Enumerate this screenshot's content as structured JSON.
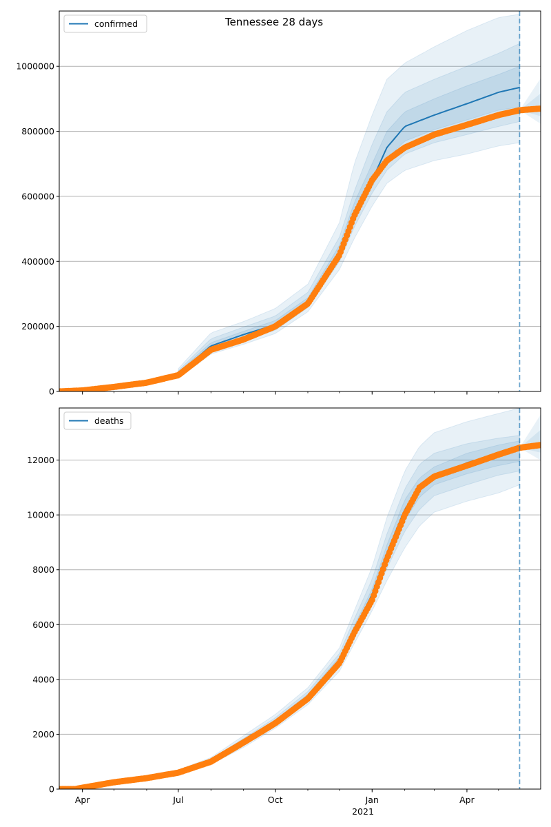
{
  "figure": {
    "title": "Tennessee 28 days"
  },
  "colors": {
    "model": "#1f77b4",
    "observed": "#ff7f0e",
    "band": "#1f77b4",
    "grid": "#b0b0b0",
    "forecast_line": "#1f77b4"
  },
  "x_axis": {
    "tick_labels": [
      "Apr",
      "Jul",
      "Oct",
      "Jan",
      "Apr"
    ],
    "year_label": "2021"
  },
  "chart_data": [
    {
      "type": "line",
      "title": "Tennessee 28 days",
      "legend": {
        "label": "confirmed",
        "position": "top-left"
      },
      "grid": "horizontal",
      "xlim": [
        "2020-03-10",
        "2021-06-10"
      ],
      "ylim": [
        0,
        1170000
      ],
      "yticks": [
        0,
        200000,
        400000,
        600000,
        800000,
        1000000
      ],
      "ytick_labels": [
        "0",
        "200000",
        "400000",
        "600000",
        "800000",
        "1000000"
      ],
      "xticks": [
        "2020-04-01",
        "2020-07-01",
        "2020-10-01",
        "2021-01-01",
        "2021-04-01"
      ],
      "forecast_start": "2021-05-21",
      "observed": {
        "dates": [
          "2020-03-10",
          "2020-04-01",
          "2020-05-01",
          "2020-06-01",
          "2020-07-01",
          "2020-07-15",
          "2020-08-01",
          "2020-09-01",
          "2020-10-01",
          "2020-11-01",
          "2020-11-15",
          "2020-12-01",
          "2020-12-15",
          "2021-01-01",
          "2021-01-15",
          "2021-02-01",
          "2021-03-01",
          "2021-04-01",
          "2021-05-01",
          "2021-05-21",
          "2021-06-10"
        ],
        "values": [
          0,
          3000,
          14000,
          27000,
          50000,
          85000,
          128000,
          160000,
          200000,
          270000,
          340000,
          420000,
          540000,
          650000,
          710000,
          750000,
          790000,
          820000,
          850000,
          865000,
          870000
        ]
      },
      "model": {
        "dates": [
          "2020-07-01",
          "2020-08-01",
          "2020-09-01",
          "2020-10-01",
          "2020-11-01",
          "2020-12-01",
          "2020-12-15",
          "2021-01-01",
          "2021-01-15",
          "2021-02-01",
          "2021-03-01",
          "2021-04-01",
          "2021-05-01",
          "2021-05-21"
        ],
        "values": [
          55000,
          140000,
          175000,
          205000,
          275000,
          430000,
          550000,
          650000,
          750000,
          815000,
          850000,
          885000,
          920000,
          935000
        ]
      },
      "bands": [
        {
          "dates": [
            "2020-07-01",
            "2020-08-01",
            "2020-09-01",
            "2020-10-01",
            "2020-11-01",
            "2020-12-01",
            "2020-12-15",
            "2021-01-01",
            "2021-01-15",
            "2021-02-01",
            "2021-03-01",
            "2021-04-01",
            "2021-05-01",
            "2021-05-21"
          ],
          "lower": [
            40000,
            115000,
            145000,
            178000,
            245000,
            375000,
            470000,
            570000,
            640000,
            680000,
            710000,
            730000,
            755000,
            765000
          ],
          "upper": [
            70000,
            180000,
            215000,
            255000,
            330000,
            520000,
            700000,
            850000,
            960000,
            1010000,
            1060000,
            1110000,
            1150000,
            1160000
          ]
        },
        {
          "dates": [
            "2020-07-01",
            "2020-08-01",
            "2020-09-01",
            "2020-10-01",
            "2020-11-01",
            "2020-12-01",
            "2020-12-15",
            "2021-01-01",
            "2021-01-15",
            "2021-02-01",
            "2021-03-01",
            "2021-04-01",
            "2021-05-01",
            "2021-05-21"
          ],
          "lower": [
            46000,
            125000,
            157000,
            188000,
            258000,
            400000,
            505000,
            610000,
            680000,
            730000,
            765000,
            790000,
            815000,
            830000
          ],
          "upper": [
            64000,
            162000,
            198000,
            232000,
            305000,
            475000,
            615000,
            760000,
            860000,
            920000,
            960000,
            1000000,
            1040000,
            1070000
          ]
        },
        {
          "dates": [
            "2020-07-01",
            "2020-08-01",
            "2020-09-01",
            "2020-10-01",
            "2020-11-01",
            "2020-12-01",
            "2020-12-15",
            "2021-01-01",
            "2021-01-15",
            "2021-02-01",
            "2021-03-01",
            "2021-04-01",
            "2021-05-01",
            "2021-05-21"
          ],
          "lower": [
            50000,
            132000,
            166000,
            196000,
            266000,
            415000,
            525000,
            630000,
            715000,
            770000,
            805000,
            835000,
            865000,
            875000
          ],
          "upper": [
            60000,
            150000,
            185000,
            218000,
            288000,
            450000,
            580000,
            700000,
            800000,
            860000,
            900000,
            940000,
            975000,
            1000000
          ]
        }
      ]
    },
    {
      "type": "line",
      "legend": {
        "label": "deaths",
        "position": "top-left"
      },
      "grid": "horizontal",
      "xlim": [
        "2020-03-10",
        "2021-06-10"
      ],
      "ylim": [
        0,
        13900
      ],
      "yticks": [
        0,
        2000,
        4000,
        6000,
        8000,
        10000,
        12000
      ],
      "ytick_labels": [
        "0",
        "2000",
        "4000",
        "6000",
        "8000",
        "10000",
        "12000"
      ],
      "xticks": [
        "2020-04-01",
        "2020-07-01",
        "2020-10-01",
        "2021-01-01",
        "2021-04-01"
      ],
      "forecast_start": "2021-05-21",
      "observed": {
        "dates": [
          "2020-03-10",
          "2020-03-25",
          "2020-04-01",
          "2020-05-01",
          "2020-06-01",
          "2020-07-01",
          "2020-08-01",
          "2020-09-01",
          "2020-10-01",
          "2020-11-01",
          "2020-12-01",
          "2020-12-15",
          "2021-01-01",
          "2021-01-15",
          "2021-02-01",
          "2021-02-15",
          "2021-03-01",
          "2021-04-01",
          "2021-05-01",
          "2021-05-21",
          "2021-06-10"
        ],
        "values": [
          0,
          0,
          50,
          250,
          400,
          600,
          1000,
          1700,
          2400,
          3300,
          4600,
          5700,
          6900,
          8400,
          10000,
          11000,
          11400,
          11800,
          12200,
          12450,
          12550
        ]
      },
      "model": {
        "dates": [
          "2020-07-01",
          "2020-08-01",
          "2020-09-01",
          "2020-10-01",
          "2020-11-01",
          "2020-12-01",
          "2020-12-15",
          "2021-01-01",
          "2021-01-15",
          "2021-02-01",
          "2021-02-15",
          "2021-03-01",
          "2021-04-01",
          "2021-05-01",
          "2021-05-21"
        ],
        "values": [
          620,
          1020,
          1720,
          2450,
          3380,
          4700,
          5800,
          7100,
          8600,
          10200,
          11000,
          11400,
          11900,
          12250,
          12400
        ]
      },
      "bands": [
        {
          "dates": [
            "2020-07-01",
            "2020-08-01",
            "2020-09-01",
            "2020-10-01",
            "2020-11-01",
            "2020-12-01",
            "2020-12-15",
            "2021-01-01",
            "2021-01-15",
            "2021-02-01",
            "2021-02-15",
            "2021-03-01",
            "2021-04-01",
            "2021-05-01",
            "2021-05-21"
          ],
          "lower": [
            560,
            900,
            1520,
            2220,
            3080,
            4300,
            5300,
            6500,
            7600,
            8800,
            9600,
            10100,
            10500,
            10800,
            11100
          ],
          "upper": [
            700,
            1150,
            1950,
            2720,
            3700,
            5150,
            6500,
            8100,
            9900,
            11600,
            12500,
            13000,
            13400,
            13700,
            13900
          ]
        },
        {
          "dates": [
            "2020-07-01",
            "2020-08-01",
            "2020-09-01",
            "2020-10-01",
            "2020-11-01",
            "2020-12-01",
            "2020-12-15",
            "2021-01-01",
            "2021-01-15",
            "2021-02-01",
            "2021-02-15",
            "2021-03-01",
            "2021-04-01",
            "2021-05-01",
            "2021-05-21"
          ],
          "lower": [
            580,
            950,
            1610,
            2320,
            3220,
            4480,
            5550,
            6800,
            8050,
            9400,
            10200,
            10700,
            11100,
            11450,
            11600
          ],
          "upper": [
            670,
            1100,
            1850,
            2600,
            3560,
            4950,
            6200,
            7650,
            9300,
            10950,
            11850,
            12250,
            12600,
            12800,
            12900
          ]
        },
        {
          "dates": [
            "2020-07-01",
            "2020-08-01",
            "2020-09-01",
            "2020-10-01",
            "2020-11-01",
            "2020-12-01",
            "2020-12-15",
            "2021-01-01",
            "2021-01-15",
            "2021-02-01",
            "2021-02-15",
            "2021-03-01",
            "2021-04-01",
            "2021-05-01",
            "2021-05-21"
          ],
          "lower": [
            600,
            990,
            1670,
            2390,
            3300,
            4600,
            5680,
            6950,
            8350,
            9800,
            10650,
            11100,
            11500,
            11800,
            11950
          ],
          "upper": [
            645,
            1060,
            1780,
            2520,
            3460,
            4820,
            5950,
            7300,
            8900,
            10550,
            11350,
            11750,
            12250,
            12550,
            12700
          ]
        }
      ]
    }
  ]
}
